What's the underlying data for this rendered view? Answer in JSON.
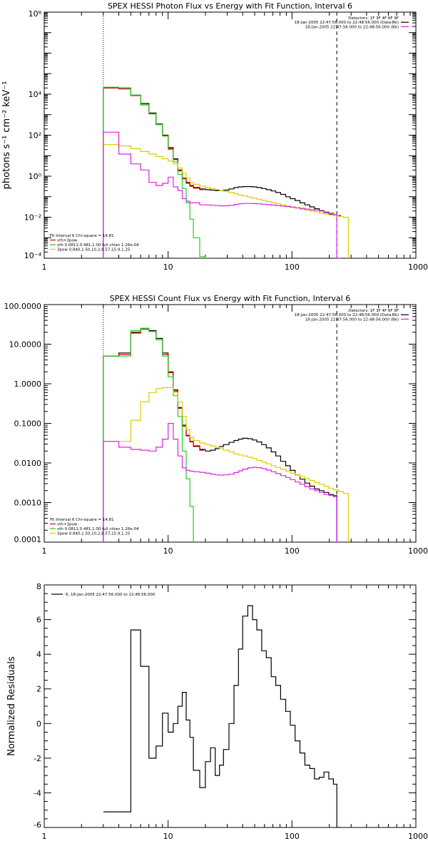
{
  "chart_data": [
    {
      "type": "line",
      "title": "SPEX HESSI Photon Flux vs Energy with Fit Function, Interval 6",
      "ylabel": "photons s⁻¹ cm⁻² keV⁻¹",
      "xlabel": "",
      "xscale": "log",
      "yscale": "log",
      "xlim": [
        1,
        1000
      ],
      "ylim": [
        0.0001,
        100000000
      ],
      "xticks": [
        1,
        10,
        100,
        1000
      ],
      "xtick_labels": [
        "1",
        "10",
        "100",
        "1000"
      ],
      "yticks": [
        0.0001,
        0.01,
        1,
        100,
        10000,
        100000000
      ],
      "ytick_labels": [
        "10⁻⁴",
        "10⁻²",
        "10⁰",
        "10²",
        "10⁴",
        "10⁸"
      ],
      "vlines": [
        {
          "x": 3.0,
          "style": "dotted"
        },
        {
          "x": 230,
          "style": "dashed"
        }
      ],
      "info": [
        "Detectors: 1F 3F 4F 6F 9F",
        "18-Jan-2005 22:47:56.000 to 22:48:56.000 (Data-Bk)",
        "18-Jan-2005 22:47:56.000 to 22:48:56.000 (Bk)"
      ],
      "fit_text": [
        "Fit Interval  6    Chi-square = 14.81",
        "vth+3pow",
        "vth 0.0811,0.481,1.00  full chian 1.26e-04",
        "3pow 0.840,1.50,10.2,8.57,15.9,1.25"
      ],
      "series": [
        {
          "name": "Data-Bk",
          "color": "#000000",
          "x": [
            3.0,
            4.0,
            5.0,
            6.0,
            7.0,
            8.0,
            9.0,
            10.0,
            11.0,
            12.0,
            13.0,
            14.0,
            15.0,
            16.0,
            18.0,
            20.0,
            22.0,
            24.0,
            26.0,
            28.0,
            31.0,
            34.0,
            37.0,
            40.0,
            44.0,
            48.0,
            52.0,
            57.0,
            62.0,
            68.0,
            74.0,
            81.0,
            89.0,
            97.0,
            106.0,
            116.0,
            127.0,
            139.0,
            152.0,
            166.0,
            181.0,
            198.0,
            216.0,
            230.0
          ],
          "y": [
            20000,
            20000,
            9000,
            3500,
            1200,
            350,
            100,
            25,
            7,
            2,
            0.8,
            0.5,
            0.35,
            0.28,
            0.24,
            0.22,
            0.21,
            0.2,
            0.2,
            0.21,
            0.24,
            0.28,
            0.3,
            0.31,
            0.31,
            0.3,
            0.28,
            0.25,
            0.22,
            0.19,
            0.16,
            0.13,
            0.1,
            0.08,
            0.065,
            0.05,
            0.04,
            0.032,
            0.026,
            0.021,
            0.017,
            0.014,
            0.012,
            0.012
          ]
        },
        {
          "name": "vth+3pow",
          "color": "#dd0000",
          "x": [
            3.0,
            4.0,
            5.0,
            6.0,
            7.0,
            8.0,
            9.0,
            10.0,
            11.0,
            12.0,
            13.0,
            14.0,
            15.0,
            16.0,
            18.0
          ],
          "y": [
            20000,
            18000,
            8500,
            3000,
            1100,
            330,
            95,
            22,
            6.5,
            1.8,
            0.75,
            0.45,
            0.32,
            0.26,
            0.22
          ]
        },
        {
          "name": "vth",
          "color": "#22cc22",
          "x": [
            3.0,
            4.0,
            5.0,
            6.0,
            7.0,
            8.0,
            9.0,
            10.0,
            11.0,
            12.0,
            13.0,
            14.0,
            15.0,
            16.0,
            18.0,
            20.0
          ],
          "y": [
            22000,
            20000,
            9000,
            3000,
            1100,
            330,
            90,
            20,
            5,
            1.2,
            0.25,
            0.05,
            0.008,
            0.001,
            0.00012,
            1e-05
          ]
        },
        {
          "name": "3pow",
          "color": "#ddcc00",
          "x": [
            3.0,
            4.0,
            5.0,
            6.0,
            7.0,
            8.0,
            9.0,
            10.0,
            11.0,
            12.0,
            13.0,
            14.0,
            15.0,
            16.0,
            18.0,
            20.0,
            22.0,
            24.0,
            26.0,
            28.0,
            31.0,
            34.0,
            37.0,
            40.0,
            44.0,
            48.0,
            52.0,
            57.0,
            62.0,
            68.0,
            74.0,
            81.0,
            89.0,
            97.0,
            106.0,
            116.0,
            127.0,
            139.0,
            152.0,
            166.0,
            181.0,
            198.0,
            216.0,
            237.0,
            260.0,
            285.0
          ],
          "y": [
            35,
            30,
            22,
            16,
            12,
            9,
            7,
            5.5,
            4,
            2.5,
            1.4,
            0.8,
            0.5,
            0.4,
            0.33,
            0.28,
            0.25,
            0.22,
            0.2,
            0.18,
            0.16,
            0.14,
            0.12,
            0.11,
            0.095,
            0.085,
            0.075,
            0.066,
            0.058,
            0.051,
            0.045,
            0.04,
            0.035,
            0.031,
            0.028,
            0.025,
            0.022,
            0.02,
            0.018,
            0.016,
            0.014,
            0.013,
            0.012,
            0.011,
            0.01,
            1e-05
          ]
        },
        {
          "name": "background",
          "color": "#dd22dd",
          "x": [
            3.0,
            4.0,
            5.0,
            6.0,
            7.0,
            8.0,
            9.0,
            10.0,
            11.0,
            12.0,
            13.0,
            14.0,
            15.0,
            16.0,
            18.0,
            20.0,
            22.0,
            24.0,
            26.0,
            28.0,
            31.0,
            34.0,
            37.0,
            40.0,
            44.0,
            48.0,
            52.0,
            57.0,
            62.0,
            68.0,
            74.0,
            81.0,
            89.0,
            97.0,
            106.0,
            116.0,
            127.0,
            139.0,
            152.0,
            166.0,
            181.0,
            198.0,
            216.0,
            230.0
          ],
          "y": [
            140,
            12,
            4,
            2,
            0.5,
            0.35,
            0.45,
            0.9,
            0.3,
            0.2,
            0.08,
            0.06,
            0.05,
            0.05,
            0.04,
            0.04,
            0.038,
            0.037,
            0.036,
            0.036,
            0.038,
            0.042,
            0.045,
            0.047,
            0.047,
            0.046,
            0.045,
            0.043,
            0.041,
            0.039,
            0.037,
            0.035,
            0.033,
            0.031,
            0.029,
            0.027,
            0.025,
            0.023,
            0.022,
            0.02,
            0.018,
            0.016,
            0.014,
            0.0001
          ]
        }
      ]
    },
    {
      "type": "line",
      "title": "SPEX HESSI Count Flux vs Energy with Fit Function, Interval 6",
      "xlabel": "",
      "ylabel": "",
      "xscale": "log",
      "yscale": "log",
      "xlim": [
        1,
        1000
      ],
      "ylim": [
        0.0001,
        100
      ],
      "xticks": [
        1,
        10,
        100,
        1000
      ],
      "xtick_labels": [
        "1",
        "10",
        "100",
        "1000"
      ],
      "yticks": [
        0.0001,
        0.001,
        0.01,
        0.1,
        1,
        10,
        100
      ],
      "ytick_labels": [
        "0.0001",
        "0.0010",
        "0.0100",
        "0.1000",
        "1.0000",
        "10.0000",
        "100.0000"
      ],
      "vlines": [
        {
          "x": 3.0,
          "style": "dotted"
        },
        {
          "x": 230,
          "style": "dashed"
        }
      ],
      "info": [
        "Detectors: 1F 3F 4F 6F 9F",
        "18-Jan-2005 22:47:56.000 to 22:48:56.000 (Data-Bk)",
        "18-Jan-2005 22:47:56.000 to 22:48:56.000 (Bk)"
      ],
      "fit_text": [
        "Fit Interval  6    Chi-square = 14.81",
        "vth+3pow",
        "vth 0.0811,0.481,1.00  full chian 1.26e-04",
        "3pow 0.840,1.50,10.2,8.57,15.9,1.25"
      ],
      "series": [
        {
          "name": "Data-Bk",
          "color": "#000000",
          "x": [
            3.0,
            4.0,
            5.0,
            6.0,
            7.0,
            8.0,
            9.0,
            10.0,
            11.0,
            12.0,
            13.0,
            14.0,
            15.0,
            16.0,
            18.0,
            20.0,
            22.0,
            24.0,
            26.0,
            28.0,
            31.0,
            34.0,
            37.0,
            40.0,
            44.0,
            48.0,
            52.0,
            57.0,
            62.0,
            68.0,
            74.0,
            81.0,
            89.0,
            97.0,
            106.0,
            116.0,
            127.0,
            139.0,
            152.0,
            166.0,
            181.0,
            198.0,
            216.0,
            230.0
          ],
          "y": [
            5,
            6,
            20,
            25,
            22,
            14,
            6,
            2,
            0.7,
            0.25,
            0.09,
            0.05,
            0.035,
            0.027,
            0.022,
            0.02,
            0.021,
            0.023,
            0.026,
            0.029,
            0.033,
            0.037,
            0.04,
            0.042,
            0.041,
            0.038,
            0.034,
            0.029,
            0.024,
            0.019,
            0.015,
            0.011,
            0.0085,
            0.0065,
            0.005,
            0.0039,
            0.0031,
            0.0026,
            0.0022,
            0.002,
            0.0018,
            0.0016,
            0.0015,
            0.0001
          ]
        },
        {
          "name": "vth+3pow",
          "color": "#dd0000",
          "x": [
            3.0,
            4.0,
            5.0,
            6.0,
            7.0,
            8.0,
            9.0,
            10.0,
            11.0,
            12.0,
            13.0,
            14.0,
            15.0,
            16.0,
            18.0
          ],
          "y": [
            5,
            5.5,
            19,
            24,
            21,
            13,
            5.5,
            1.9,
            0.65,
            0.24,
            0.085,
            0.048,
            0.034,
            0.026,
            0.021
          ]
        },
        {
          "name": "vth",
          "color": "#22cc22",
          "x": [
            3.0,
            4.0,
            5.0,
            6.0,
            7.0,
            8.0,
            9.0,
            10.0,
            11.0,
            12.0,
            13.0,
            14.0,
            15.0,
            16.0
          ],
          "y": [
            5,
            5,
            22,
            25,
            21,
            13,
            5,
            1.5,
            0.5,
            0.15,
            0.02,
            0.004,
            0.0008,
            1e-05
          ]
        },
        {
          "name": "3pow",
          "color": "#ddcc00",
          "x": [
            3.0,
            4.0,
            5.0,
            6.0,
            7.0,
            8.0,
            9.0,
            10.0,
            11.0,
            12.0,
            13.0,
            14.0,
            15.0,
            16.0,
            18.0,
            20.0,
            22.0,
            24.0,
            26.0,
            28.0,
            31.0,
            34.0,
            37.0,
            40.0,
            44.0,
            48.0,
            52.0,
            57.0,
            62.0,
            68.0,
            74.0,
            81.0,
            89.0,
            97.0,
            106.0,
            116.0,
            127.0,
            139.0,
            152.0,
            166.0,
            181.0,
            198.0,
            216.0,
            237.0,
            260.0,
            285.0
          ],
          "y": [
            0.035,
            0.035,
            0.12,
            0.35,
            0.6,
            0.75,
            0.8,
            0.8,
            0.6,
            0.35,
            0.15,
            0.07,
            0.045,
            0.037,
            0.032,
            0.029,
            0.027,
            0.025,
            0.023,
            0.021,
            0.019,
            0.017,
            0.016,
            0.015,
            0.014,
            0.013,
            0.0115,
            0.0105,
            0.0095,
            0.0085,
            0.0077,
            0.0069,
            0.0062,
            0.0055,
            0.005,
            0.0045,
            0.004,
            0.0036,
            0.0032,
            0.0029,
            0.0026,
            0.0023,
            0.0021,
            0.0019,
            0.0017,
            1e-05
          ]
        },
        {
          "name": "background",
          "color": "#dd22dd",
          "x": [
            3.0,
            4.0,
            5.0,
            6.0,
            7.0,
            8.0,
            9.0,
            10.0,
            11.0,
            12.0,
            13.0,
            14.0,
            15.0,
            16.0,
            18.0,
            20.0,
            22.0,
            24.0,
            26.0,
            28.0,
            31.0,
            34.0,
            37.0,
            40.0,
            44.0,
            48.0,
            52.0,
            57.0,
            62.0,
            68.0,
            74.0,
            81.0,
            89.0,
            97.0,
            106.0,
            116.0,
            127.0,
            139.0,
            152.0,
            166.0,
            181.0,
            198.0,
            216.0,
            230.0
          ],
          "y": [
            0.035,
            0.025,
            0.022,
            0.021,
            0.02,
            0.025,
            0.04,
            0.1,
            0.04,
            0.015,
            0.0075,
            0.0065,
            0.0062,
            0.006,
            0.0058,
            0.0055,
            0.0052,
            0.005,
            0.0049,
            0.005,
            0.0052,
            0.0057,
            0.0063,
            0.007,
            0.0075,
            0.0078,
            0.0076,
            0.0072,
            0.0066,
            0.006,
            0.0054,
            0.0048,
            0.0043,
            0.0038,
            0.0033,
            0.0029,
            0.0025,
            0.0022,
            0.002,
            0.0018,
            0.0016,
            0.0015,
            0.0014,
            0.0001
          ]
        }
      ]
    },
    {
      "type": "line",
      "title": "",
      "xlabel": "",
      "ylabel": "Normalized Residuals",
      "xscale": "log",
      "yscale": "linear",
      "xlim": [
        1,
        1000
      ],
      "ylim": [
        -6,
        8
      ],
      "xticks": [
        1,
        10,
        100,
        1000
      ],
      "xtick_labels": [
        "1",
        "10",
        "100",
        "1000"
      ],
      "yticks": [
        -6,
        -4,
        -2,
        0,
        2,
        4,
        6,
        8
      ],
      "ytick_labels": [
        "-6",
        "-4",
        "-2",
        "0",
        "2",
        "4",
        "6",
        "8"
      ],
      "vlines": [],
      "legend_text": "6, 18-Jan-2005 22:47:56.000 to 22:48:56.000",
      "series": [
        {
          "name": "6, 18-Jan-2005 22:47:56.000 to 22:48:56.000",
          "color": "#000000",
          "x": [
            3.0,
            4.0,
            5.0,
            6.0,
            7.0,
            8.0,
            9.0,
            10.0,
            11.0,
            12.0,
            13.0,
            14.0,
            15.0,
            16.0,
            18.0,
            20.0,
            22.0,
            24.0,
            26.0,
            28.0,
            31.0,
            34.0,
            37.0,
            40.0,
            44.0,
            48.0,
            52.0,
            57.0,
            62.0,
            68.0,
            74.0,
            81.0,
            89.0,
            97.0,
            106.0,
            116.0,
            127.0,
            139.0,
            152.0,
            166.0,
            181.0,
            198.0,
            216.0,
            230.0
          ],
          "y": [
            -5.1,
            -5.1,
            5.4,
            3.3,
            -2.0,
            -1.3,
            0.6,
            -0.5,
            0.0,
            1.0,
            1.8,
            0.2,
            -0.8,
            -2.7,
            -3.7,
            -2.2,
            -1.4,
            -3.0,
            -2.4,
            -1.5,
            0.0,
            2.2,
            4.3,
            6.2,
            6.8,
            6.0,
            5.4,
            4.2,
            3.8,
            2.7,
            2.2,
            1.4,
            0.7,
            -0.1,
            -1.0,
            -1.7,
            -2.4,
            -2.6,
            -3.2,
            -3.1,
            -2.8,
            -3.2,
            -3.5,
            -6.0
          ]
        }
      ]
    }
  ]
}
